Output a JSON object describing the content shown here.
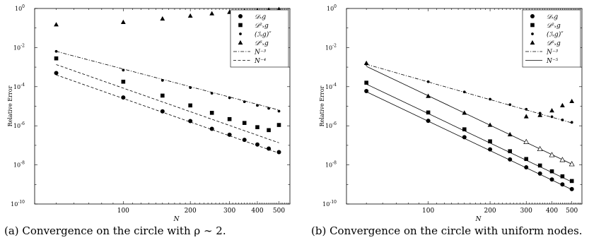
{
  "chart_data": [
    {
      "type": "scatter",
      "panel": "a",
      "caption": "(a) Convergence on the circle with ρ ∼ 2.",
      "xlabel": "N",
      "ylabel": "Relative Error",
      "xscale": "log",
      "yscale": "log",
      "xlim": [
        40,
        560
      ],
      "ylim": [
        1e-10,
        1
      ],
      "xticks": [
        100,
        200,
        300,
        400,
        500
      ],
      "xtick_labels": [
        "100",
        "200",
        "300",
        "400",
        "500"
      ],
      "yticks": [
        1e-10,
        1e-08,
        1e-06,
        0.0001,
        0.01,
        1
      ],
      "ytick_labels": [
        "10",
        "10",
        "10",
        "10",
        "10",
        "10"
      ],
      "ytick_exponents": [
        "-10",
        "-8",
        "-6",
        "-4",
        "-2",
        "0"
      ],
      "legend_position": "top-right",
      "series": [
        {
          "name": "𝒟ₓg",
          "marker": "circle",
          "x": [
            50,
            100,
            150,
            200,
            250,
            300,
            350,
            400,
            450,
            500
          ],
          "y": [
            0.0005,
            2.8e-05,
            5.5e-06,
            1.75e-06,
            7e-07,
            3.5e-07,
            1.9e-07,
            1.1e-07,
            6.8e-08,
            4.5e-08
          ]
        },
        {
          "name": "𝒟²ₓg",
          "marker": "square",
          "x": [
            50,
            100,
            150,
            200,
            250,
            300,
            350,
            400,
            450,
            500
          ],
          "y": [
            0.0028,
            0.00018,
            3.5e-05,
            1.1e-05,
            4.6e-06,
            2.2e-06,
            1.4e-06,
            8.5e-07,
            6e-07,
            1.1e-06
          ]
        },
        {
          "name": "(ℐₓg)″",
          "marker": "dot",
          "x": [
            50,
            100,
            150,
            200,
            250,
            300,
            350,
            400,
            450,
            500
          ],
          "y": [
            0.0064,
            0.0007,
            0.00021,
            9e-05,
            4.6e-05,
            2.7e-05,
            1.7e-05,
            1.1e-05,
            7.8e-06,
            5.6e-06
          ]
        },
        {
          "name": "𝒟⁶ₓg",
          "marker": "triangle",
          "x": [
            50,
            100,
            150,
            200,
            250,
            300,
            350,
            400,
            450,
            500
          ],
          "y": [
            0.15,
            0.2,
            0.3,
            0.42,
            0.55,
            0.65,
            0.75,
            0.8,
            0.85,
            0.9
          ]
        }
      ],
      "lines": [
        {
          "name": "N⁻³",
          "style": "dashdot",
          "x": [
            50,
            500
          ],
          "y": [
            0.0064,
            6.4e-06
          ]
        },
        {
          "name": "N⁻⁴",
          "style": "dashed",
          "x": [
            50,
            500
          ],
          "y": [
            0.00135,
            1.35e-07
          ]
        },
        {
          "name": "",
          "style": "dashed",
          "x": [
            50,
            500
          ],
          "y": [
            0.0004,
            4e-08
          ]
        }
      ]
    },
    {
      "type": "scatter",
      "panel": "b",
      "caption": "(b) Convergence on the circle with uniform nodes.",
      "xlabel": "N",
      "ylabel": "Relative Error",
      "xscale": "log",
      "yscale": "log",
      "xlim": [
        40,
        560
      ],
      "ylim": [
        1e-10,
        1
      ],
      "xticks": [
        100,
        200,
        300,
        400,
        500
      ],
      "xtick_labels": [
        "100",
        "200",
        "300",
        "400",
        "500"
      ],
      "yticks": [
        1e-10,
        1e-08,
        1e-06,
        0.0001,
        0.01,
        1
      ],
      "ytick_labels": [
        "10",
        "10",
        "10",
        "10",
        "10",
        "10"
      ],
      "ytick_exponents": [
        "-10",
        "-8",
        "-6",
        "-4",
        "-2",
        "0"
      ],
      "legend_position": "top-right",
      "series": [
        {
          "name": "𝒟ₓg",
          "marker": "circle",
          "x": [
            50,
            100,
            150,
            200,
            250,
            300,
            350,
            400,
            450,
            500
          ],
          "y": [
            6e-05,
            1.8e-06,
            2.6e-07,
            6.2e-08,
            1.9e-08,
            7.5e-09,
            3.6e-09,
            1.8e-09,
            1e-09,
            5.8e-10
          ]
        },
        {
          "name": "𝒟²ₓg",
          "marker": "square",
          "x": [
            50,
            100,
            150,
            200,
            250,
            300,
            350,
            400,
            450,
            500
          ],
          "y": [
            0.00016,
            4.8e-06,
            6.6e-07,
            1.6e-07,
            5e-08,
            2e-08,
            9.3e-09,
            4.7e-09,
            2.6e-09,
            1.5e-09
          ]
        },
        {
          "name": "(ℐₓg)″",
          "marker": "dot",
          "x": [
            50,
            100,
            150,
            200,
            250,
            300,
            350,
            400,
            450,
            500
          ],
          "y": [
            0.0014,
            0.00018,
            5.4e-05,
            2.3e-05,
            1.2e-05,
            7e-06,
            4.4e-06,
            2.9e-06,
            2e-06,
            1.5e-06
          ]
        },
        {
          "name": "𝒟⁶ₓg",
          "marker": "triangle",
          "x": [
            50,
            100,
            150,
            200,
            250,
            300,
            350,
            400,
            450,
            500
          ],
          "y": [
            0.0016,
            3.3e-05,
            4.6e-06,
            1.1e-06,
            3.6e-07,
            3e-06,
            3.5e-06,
            6e-06,
            1.1e-05,
            1.8e-05
          ]
        },
        {
          "name": "",
          "marker": "triangle-open",
          "x": [
            300,
            350,
            400,
            450,
            500
          ],
          "y": [
            1.5e-07,
            6.5e-08,
            3.2e-08,
            1.8e-08,
            1.1e-08
          ]
        }
      ],
      "lines": [
        {
          "name": "N⁻³",
          "style": "dashdot",
          "x": [
            50,
            500
          ],
          "y": [
            0.0014,
            1.4e-06
          ]
        },
        {
          "name": "N⁻⁵",
          "style": "solid",
          "x": [
            50,
            500
          ],
          "y": [
            0.0011,
            1.1e-08
          ]
        },
        {
          "name": "",
          "style": "solid",
          "x": [
            50,
            500
          ],
          "y": [
            0.000135,
            1.35e-09
          ]
        },
        {
          "name": "",
          "style": "solid",
          "x": [
            50,
            500
          ],
          "y": [
            5.5e-05,
            5.5e-10
          ]
        }
      ]
    }
  ]
}
